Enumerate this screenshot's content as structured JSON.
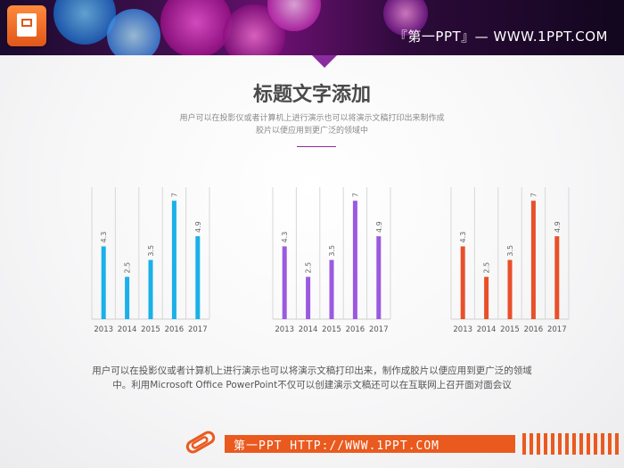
{
  "header": {
    "title": "『第一PPT』— WWW.1PPT.COM",
    "logo_icon": "powerpoint-icon"
  },
  "main": {
    "title": "标题文字添加",
    "subtitle": "用户可以在投影仪或者计算机上进行演示也可以将演示文稿打印出来制作成胶片以便应用到更广泛的领域中",
    "caption_line1": "用户可以在投影仪或者计算机上进行演示也可以将演示文稿打印出来，制作成胶片以便应用到更广泛的领域",
    "caption_line2": "中。利用Microsoft Office PowerPoint不仅可以创建演示文稿还可以在互联网上召开面对面会议"
  },
  "footer": {
    "text": "第一PPT HTTP://WWW.1PPT.COM",
    "icon": "paperclip-icon"
  },
  "colors": {
    "accent_purple": "#8a2ca0",
    "footer_orange": "#ea5a1e"
  },
  "chart_data": [
    {
      "type": "bar",
      "categories": [
        "2013",
        "2014",
        "2015",
        "2016",
        "2017"
      ],
      "values": [
        4.3,
        2.5,
        3.5,
        7,
        4.9
      ],
      "labels": [
        "4.3",
        "2.5",
        "3.5",
        "7",
        "4.9"
      ],
      "color": "#1ab0e8",
      "ylim": [
        0,
        7.8
      ],
      "grid": true
    },
    {
      "type": "bar",
      "categories": [
        "2013",
        "2014",
        "2015",
        "2016",
        "2017"
      ],
      "values": [
        4.3,
        2.5,
        3.5,
        7,
        4.9
      ],
      "labels": [
        "4.3",
        "2.5",
        "3.5",
        "7",
        "4.9"
      ],
      "color": "#9b59e0",
      "ylim": [
        0,
        7.8
      ],
      "grid": true
    },
    {
      "type": "bar",
      "categories": [
        "2013",
        "2014",
        "2015",
        "2016",
        "2017"
      ],
      "values": [
        4.3,
        2.5,
        3.5,
        7,
        4.9
      ],
      "labels": [
        "4.3",
        "2.5",
        "3.5",
        "7",
        "4.9"
      ],
      "color": "#e8502a",
      "ylim": [
        0,
        7.8
      ],
      "grid": true
    }
  ]
}
